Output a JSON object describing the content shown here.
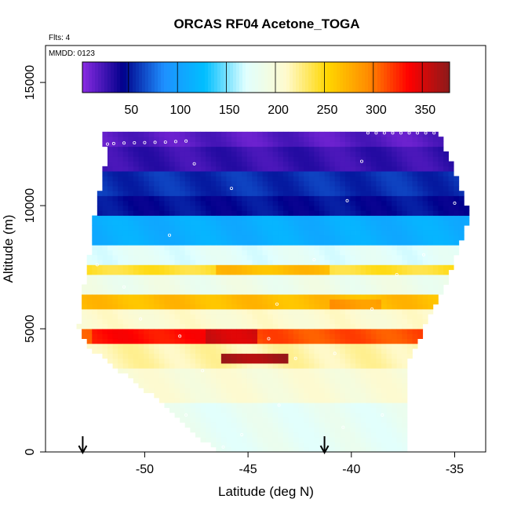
{
  "chart_data": {
    "type": "heatmap",
    "title": "ORCAS RF04 Acetone_TOGA",
    "annotations": [
      "Flts: 4",
      "MMDD: 0123"
    ],
    "xlabel": "Latitude (deg N)",
    "ylabel": "Altitude (m)",
    "xlim": [
      -54.8,
      -33.5
    ],
    "ylim": [
      0,
      16500
    ],
    "x_ticks": [
      -50,
      -45,
      -40,
      -35
    ],
    "x_tick_labels": [
      "-50",
      "-45",
      "-40",
      "-35"
    ],
    "y_ticks": [
      0,
      5000,
      10000,
      15000
    ],
    "y_tick_labels": [
      "0",
      "5000",
      "10000",
      "15000"
    ],
    "colorbar": {
      "min": 0,
      "max": 375,
      "ticks": [
        50,
        100,
        150,
        200,
        250,
        300,
        350
      ],
      "tick_labels": [
        "50",
        "100",
        "150",
        "200",
        "250",
        "300",
        "350"
      ],
      "colors": [
        "#8a2be2",
        "#00008b",
        "#1e90ff",
        "#00bfff",
        "#e0ffff",
        "#fffacd",
        "#ffd700",
        "#ff8c00",
        "#ff0000",
        "#8b1a1a"
      ]
    },
    "domain_outline": [
      [
        -52.2,
        13000
      ],
      [
        -35.8,
        13000
      ],
      [
        -35.3,
        12000
      ],
      [
        -34.8,
        11000
      ],
      [
        -34.3,
        9600
      ],
      [
        -35.3,
        7000
      ],
      [
        -36.3,
        5400
      ],
      [
        -37.3,
        3500
      ],
      [
        -37.3,
        0
      ],
      [
        -46.5,
        0
      ],
      [
        -49.5,
        2200
      ],
      [
        -51.5,
        3500
      ],
      [
        -52.8,
        4300
      ],
      [
        -53.2,
        5000
      ],
      [
        -53.0,
        6500
      ],
      [
        -52.6,
        8300
      ],
      [
        -52.5,
        9500
      ],
      [
        -52.3,
        10000
      ],
      [
        -51.8,
        12000
      ]
    ],
    "layers": [
      {
        "alt": [
          12400,
          13000
        ],
        "value": 15
      },
      {
        "alt": [
          11500,
          12400
        ],
        "value": 25
      },
      {
        "alt": [
          10500,
          11500
        ],
        "value": 55
      },
      {
        "alt": [
          9700,
          10500
        ],
        "value": 45
      },
      {
        "alt": [
          8500,
          9700
        ],
        "value": 110
      },
      {
        "alt": [
          7700,
          8500
        ],
        "value": 170
      },
      {
        "alt": [
          7200,
          7700
        ],
        "value": 240
      },
      {
        "alt": [
          6400,
          7200
        ],
        "value": 185
      },
      {
        "alt": [
          5900,
          6400
        ],
        "value": 265
      },
      {
        "alt": [
          5000,
          5900
        ],
        "value": 205
      },
      {
        "alt": [
          4500,
          5000
        ],
        "value": 310
      },
      {
        "alt": [
          3500,
          4500
        ],
        "value": 215
      },
      {
        "alt": [
          2000,
          3500
        ],
        "value": 200
      },
      {
        "alt": [
          0,
          2000
        ],
        "value": 175
      }
    ],
    "hotspots": [
      {
        "lat": [
          -52.5,
          -47.0
        ],
        "alt": [
          4500,
          5000
        ],
        "value": 330
      },
      {
        "lat": [
          -47.0,
          -44.5
        ],
        "alt": [
          4500,
          5000
        ],
        "value": 350
      },
      {
        "lat": [
          -46.2,
          -43.0
        ],
        "alt": [
          3550,
          4000
        ],
        "value": 365
      },
      {
        "lat": [
          -41.0,
          -38.5
        ],
        "alt": [
          5900,
          6200
        ],
        "value": 285
      },
      {
        "lat": [
          -46.5,
          -41.0
        ],
        "alt": [
          7200,
          7600
        ],
        "value": 265
      }
    ],
    "arrows_x": [
      -53.0,
      -41.3
    ]
  }
}
